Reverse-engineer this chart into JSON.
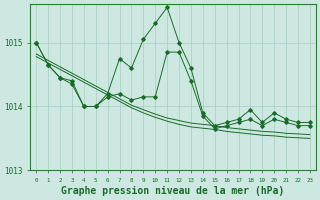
{
  "hours": [
    0,
    1,
    2,
    3,
    4,
    5,
    6,
    7,
    8,
    9,
    10,
    11,
    12,
    13,
    14,
    15,
    16,
    17,
    18,
    19,
    20,
    21,
    22,
    23
  ],
  "line_upper": [
    1015.0,
    1014.65,
    1014.45,
    1014.4,
    1014.0,
    1014.0,
    1014.2,
    1014.75,
    1014.6,
    1015.05,
    1015.3,
    1015.55,
    1015.0,
    1014.6,
    1013.9,
    1013.7,
    1013.75,
    1013.8,
    1013.95,
    1013.75,
    1013.9,
    1013.8,
    1013.75,
    1013.75
  ],
  "line_lower": [
    1015.0,
    1014.65,
    1014.45,
    1014.35,
    1014.0,
    1014.0,
    1014.15,
    1014.2,
    1014.1,
    1014.15,
    1014.15,
    1014.85,
    1014.85,
    1014.4,
    1013.85,
    1013.65,
    1013.7,
    1013.75,
    1013.8,
    1013.7,
    1013.8,
    1013.75,
    1013.7,
    1013.7
  ],
  "line_trend1": [
    1014.82,
    1014.72,
    1014.62,
    1014.52,
    1014.42,
    1014.32,
    1014.22,
    1014.12,
    1014.02,
    1013.95,
    1013.88,
    1013.82,
    1013.78,
    1013.74,
    1013.72,
    1013.7,
    1013.67,
    1013.65,
    1013.63,
    1013.61,
    1013.6,
    1013.58,
    1013.57,
    1013.56
  ],
  "line_trend2": [
    1014.78,
    1014.68,
    1014.58,
    1014.48,
    1014.38,
    1014.28,
    1014.18,
    1014.08,
    1013.98,
    1013.9,
    1013.83,
    1013.77,
    1013.72,
    1013.68,
    1013.66,
    1013.64,
    1013.61,
    1013.59,
    1013.57,
    1013.55,
    1013.54,
    1013.52,
    1013.51,
    1013.5
  ],
  "ylim": [
    1013.0,
    1015.6
  ],
  "yticks": [
    1013,
    1014,
    1015
  ],
  "bg_color": "#cce8e0",
  "line_color": "#1a6b2a",
  "grid_color": "#a8ccc4",
  "title": "Graphe pression niveau de la mer (hPa)",
  "title_fontsize": 7.0,
  "title_color": "#1a6b2a",
  "tick_color": "#1a6b2a",
  "axis_color": "#2d7a3a"
}
